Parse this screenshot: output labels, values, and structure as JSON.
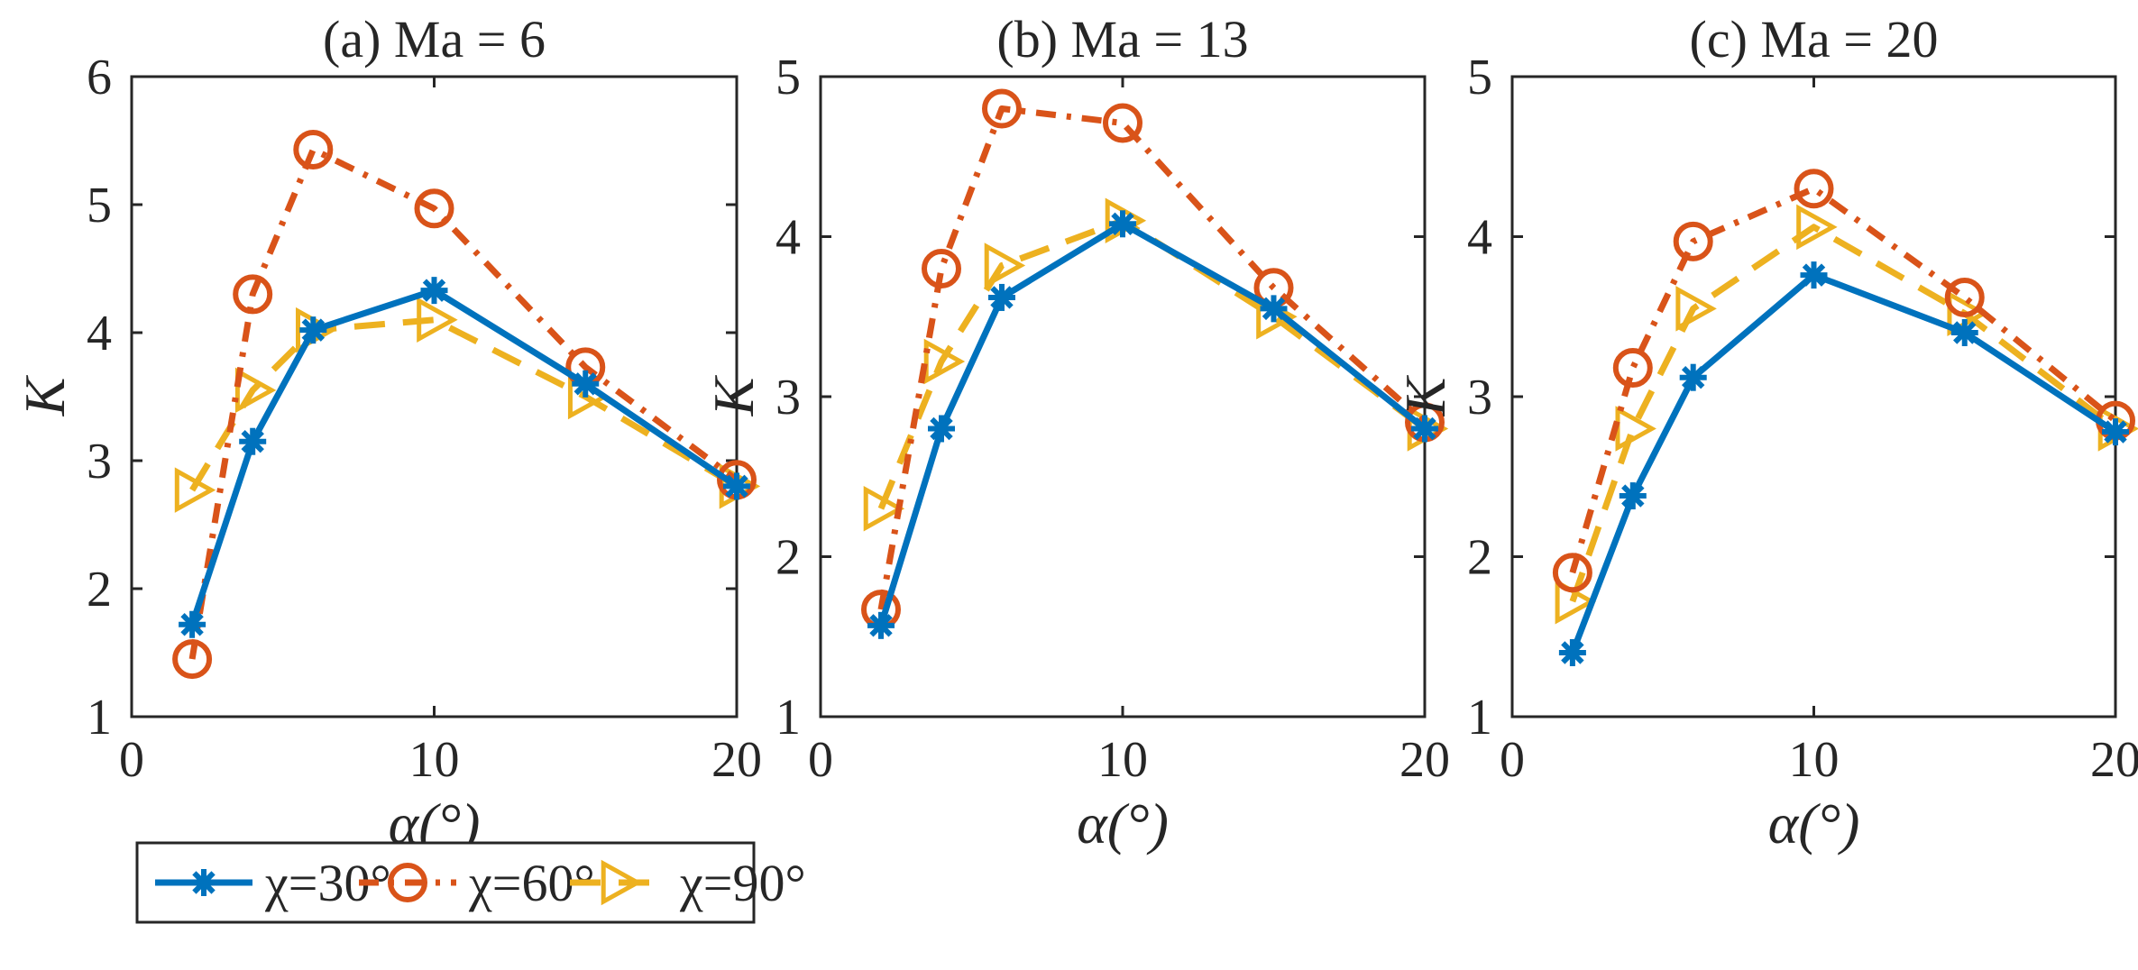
{
  "chart_data": [
    {
      "type": "line",
      "title": "(a) Ma = 6",
      "xlabel": "α(°)",
      "ylabel": "K",
      "xlim": [
        0,
        20
      ],
      "ylim": [
        1,
        6
      ],
      "xticks": [
        "0",
        "10",
        "20"
      ],
      "yticks": [
        "1",
        "2",
        "3",
        "4",
        "5",
        "6"
      ],
      "x": [
        2,
        4,
        6,
        10,
        15,
        20
      ],
      "series": [
        {
          "name": "χ=30°",
          "values": [
            1.72,
            3.15,
            4.02,
            4.33,
            3.6,
            2.8
          ]
        },
        {
          "name": "χ=60°",
          "values": [
            1.45,
            4.3,
            5.43,
            4.97,
            3.73,
            2.85
          ]
        },
        {
          "name": "χ=90°",
          "values": [
            2.77,
            3.55,
            4.02,
            4.1,
            3.5,
            2.8
          ]
        }
      ]
    },
    {
      "type": "line",
      "title": "(b) Ma = 13",
      "xlabel": "α(°)",
      "ylabel": "K",
      "xlim": [
        0,
        20
      ],
      "ylim": [
        1,
        5
      ],
      "xticks": [
        "0",
        "10",
        "20"
      ],
      "yticks": [
        "1",
        "2",
        "3",
        "4",
        "5"
      ],
      "x": [
        2,
        4,
        6,
        10,
        15,
        20
      ],
      "series": [
        {
          "name": "χ=30°",
          "values": [
            1.57,
            2.8,
            3.62,
            4.08,
            3.55,
            2.8
          ]
        },
        {
          "name": "χ=60°",
          "values": [
            1.67,
            3.8,
            4.8,
            4.71,
            3.68,
            2.84
          ]
        },
        {
          "name": "χ=90°",
          "values": [
            2.3,
            3.22,
            3.82,
            4.1,
            3.5,
            2.8
          ]
        }
      ]
    },
    {
      "type": "line",
      "title": "(c) Ma = 20",
      "xlabel": "α(°)",
      "ylabel": "K",
      "xlim": [
        0,
        20
      ],
      "ylim": [
        1,
        5
      ],
      "xticks": [
        "0",
        "10",
        "20"
      ],
      "yticks": [
        "1",
        "2",
        "3",
        "4",
        "5"
      ],
      "x": [
        2,
        4,
        6,
        10,
        15,
        20
      ],
      "series": [
        {
          "name": "χ=30°",
          "values": [
            1.4,
            2.38,
            3.12,
            3.76,
            3.4,
            2.78
          ]
        },
        {
          "name": "χ=60°",
          "values": [
            1.9,
            3.18,
            3.97,
            4.3,
            3.62,
            2.85
          ]
        },
        {
          "name": "χ=90°",
          "values": [
            1.72,
            2.8,
            3.55,
            4.06,
            3.52,
            2.8
          ]
        }
      ]
    }
  ],
  "legend": {
    "position": "bottom-left",
    "entries": [
      {
        "label": "χ=30°",
        "color": "#0072BD",
        "marker": "asterisk",
        "line": "solid"
      },
      {
        "label": "χ=60°",
        "color": "#D95319",
        "marker": "circle",
        "line": "dash-dot"
      },
      {
        "label": "χ=90°",
        "color": "#EDB120",
        "marker": "triangle-right",
        "line": "dashed"
      }
    ]
  }
}
